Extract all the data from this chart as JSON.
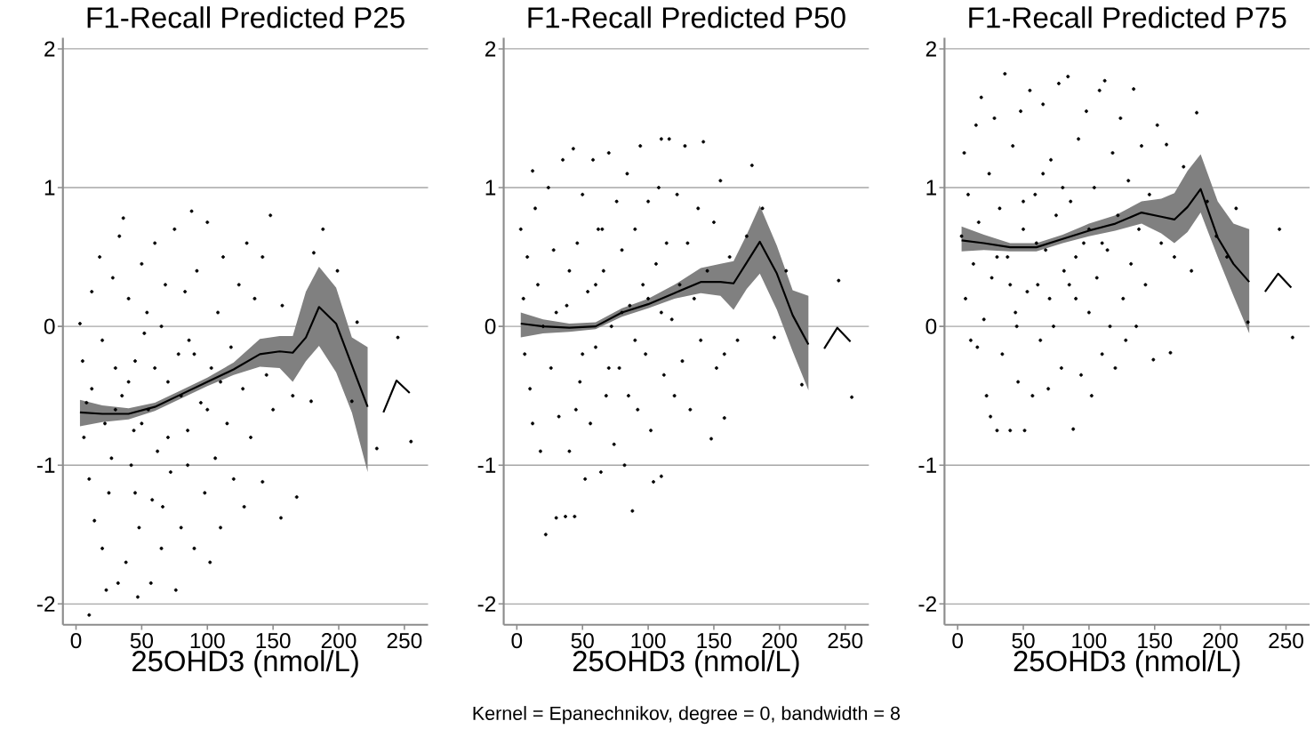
{
  "chart_data": [
    {
      "type": "scatter",
      "title": "F1-Recall Predicted P25",
      "xlabel": "25OHD3 (nmol/L)",
      "xlim": [
        -10,
        268
      ],
      "ylim": [
        -2.15,
        2.08
      ],
      "xticks": [
        0,
        50,
        100,
        150,
        200,
        250
      ],
      "yticks": [
        -2,
        -1,
        0,
        1,
        2
      ],
      "grid": "y",
      "series": [
        {
          "type": "scatter",
          "color": "#000000",
          "marker": "circle",
          "x": [
            3,
            5,
            6,
            8,
            10,
            12,
            12,
            14,
            18,
            20,
            20,
            22,
            10,
            23,
            25,
            27,
            28,
            30,
            32,
            33,
            35,
            36,
            38,
            40,
            42,
            44,
            45,
            47,
            48,
            50,
            52,
            54,
            55,
            57,
            58,
            60,
            62,
            65,
            66,
            68,
            70,
            72,
            75,
            76,
            78,
            80,
            83,
            85,
            86,
            88,
            90,
            92,
            95,
            98,
            100,
            102,
            103,
            106,
            108,
            110,
            112,
            115,
            118,
            120,
            124,
            127,
            128,
            130,
            133,
            136,
            142,
            142,
            145,
            148,
            150,
            156,
            157,
            165,
            168,
            179,
            181,
            188,
            199,
            210,
            214,
            229,
            245,
            255,
            30,
            40,
            50,
            60,
            70,
            80,
            90,
            100,
            45,
            65,
            85,
            110
          ],
          "values": [
            0.02,
            -0.25,
            -0.8,
            -0.55,
            -1.1,
            0.25,
            -0.45,
            -1.4,
            0.5,
            -0.1,
            -1.6,
            -0.7,
            -2.08,
            -1.9,
            -1.2,
            -0.95,
            0.35,
            -0.3,
            -1.85,
            0.65,
            -0.5,
            0.78,
            -1.7,
            0.2,
            -1.0,
            -0.75,
            -0.25,
            -1.95,
            -1.45,
            0.45,
            -0.05,
            0.1,
            -0.6,
            -1.85,
            -1.25,
            0.6,
            -0.9,
            -1.6,
            -1.3,
            0.3,
            -0.4,
            -1.05,
            0.7,
            -1.9,
            -0.2,
            -1.45,
            0.25,
            -0.75,
            -0.1,
            0.83,
            -1.6,
            0.4,
            -0.55,
            -1.2,
            0.75,
            -1.7,
            -0.3,
            -0.95,
            0.1,
            -1.45,
            0.5,
            -0.7,
            -0.15,
            -1.1,
            0.3,
            -0.45,
            -1.3,
            0.6,
            -0.8,
            0.2,
            -1.12,
            0.5,
            -0.35,
            0.8,
            -0.6,
            -1.38,
            0.15,
            -0.5,
            -1.23,
            -0.54,
            0.53,
            0.7,
            0.4,
            -0.54,
            0.03,
            -0.88,
            -0.08,
            -0.83,
            -0.6,
            -0.4,
            -0.7,
            -0.3,
            -0.8,
            -0.5,
            -0.2,
            -0.6,
            -1.2,
            0.0,
            -1.0,
            -0.4
          ]
        },
        {
          "type": "line",
          "color": "#000000",
          "line_style": "solid",
          "x": [
            3,
            20,
            40,
            60,
            80,
            100,
            120,
            140,
            155,
            165,
            175,
            185,
            198,
            210,
            222,
            228,
            234,
            244,
            254
          ],
          "values": [
            -0.62,
            -0.63,
            -0.63,
            -0.58,
            -0.49,
            -0.4,
            -0.31,
            -0.2,
            -0.18,
            -0.19,
            -0.08,
            0.14,
            0.02,
            -0.28,
            -0.58,
            null,
            -0.62,
            -0.39,
            -0.48
          ],
          "lower": [
            -0.72,
            -0.69,
            -0.67,
            -0.61,
            -0.52,
            -0.43,
            -0.35,
            -0.29,
            -0.3,
            -0.4,
            -0.25,
            -0.14,
            -0.33,
            -0.62,
            -1.05,
            null,
            null,
            null,
            null
          ],
          "upper": [
            -0.53,
            -0.57,
            -0.59,
            -0.55,
            -0.46,
            -0.37,
            -0.26,
            -0.09,
            -0.07,
            -0.07,
            0.25,
            0.43,
            0.28,
            -0.08,
            -0.15,
            null,
            null,
            null,
            null
          ]
        }
      ]
    },
    {
      "type": "scatter",
      "title": "F1-Recall Predicted P50",
      "xlabel": "25OHD3 (nmol/L)",
      "xlim": [
        -10,
        268
      ],
      "ylim": [
        -2.15,
        2.08
      ],
      "xticks": [
        0,
        50,
        100,
        150,
        200,
        250
      ],
      "yticks": [
        -2,
        -1,
        0,
        1,
        2
      ],
      "grid": "y",
      "annotations": [
        "Kernel = Epanechnikov, degree = 0, bandwidth = 8"
      ],
      "series": [
        {
          "type": "scatter",
          "color": "#000000",
          "marker": "circle",
          "x": [
            3,
            5,
            6,
            8,
            10,
            12,
            14,
            12,
            16,
            18,
            20,
            22,
            24,
            26,
            28,
            30,
            32,
            35,
            37,
            38,
            40,
            43,
            44,
            46,
            48,
            50,
            52,
            54,
            56,
            58,
            60,
            62,
            64,
            66,
            68,
            70,
            72,
            74,
            76,
            78,
            80,
            82,
            84,
            86,
            88,
            90,
            92,
            94,
            96,
            98,
            100,
            102,
            104,
            106,
            108,
            110,
            110,
            112,
            114,
            116,
            118,
            120,
            122,
            124,
            126,
            128,
            130,
            132,
            135,
            138,
            140,
            142,
            145,
            148,
            150,
            152,
            155,
            158,
            158,
            162,
            168,
            175,
            179,
            187,
            196,
            205,
            217,
            245,
            255,
            30,
            40,
            50,
            60,
            70,
            80,
            90,
            100,
            45,
            65,
            85,
            110
          ],
          "values": [
            0.7,
            0.2,
            -0.2,
            0.5,
            -0.45,
            1.12,
            0.85,
            -0.7,
            0.3,
            -0.9,
            0.0,
            -1.5,
            1.0,
            -0.3,
            0.55,
            -1.38,
            -0.65,
            1.2,
            -1.37,
            0.15,
            -0.9,
            1.28,
            -1.37,
            0.6,
            -0.4,
            0.95,
            -1.1,
            0.25,
            -0.7,
            1.2,
            -0.15,
            0.7,
            -1.05,
            0.4,
            -0.5,
            1.25,
            0.0,
            -0.85,
            0.9,
            -0.3,
            0.55,
            -1.0,
            1.1,
            0.15,
            -1.33,
            0.7,
            -0.6,
            1.3,
            0.3,
            -0.2,
            0.9,
            -0.75,
            -1.12,
            0.45,
            1.0,
            1.35,
            -1.08,
            -0.35,
            0.6,
            1.35,
            0.05,
            -0.5,
            0.95,
            0.3,
            -0.25,
            1.3,
            0.6,
            -0.6,
            0.2,
            0.85,
            -0.1,
            1.33,
            0.4,
            -0.81,
            0.75,
            -0.3,
            1.05,
            -0.66,
            -0.2,
            0.5,
            -0.1,
            0.65,
            1.16,
            0.85,
            -0.08,
            0.4,
            -0.42,
            0.33,
            -0.51,
            0.1,
            0.4,
            -0.2,
            0.3,
            -0.3,
            0.1,
            -0.1,
            0.2,
            -0.6,
            0.7,
            -0.5,
            0.1
          ]
        },
        {
          "type": "line",
          "color": "#000000",
          "line_style": "solid",
          "x": [
            3,
            20,
            40,
            60,
            80,
            100,
            120,
            140,
            155,
            165,
            175,
            185,
            198,
            210,
            222,
            228,
            234,
            244,
            254
          ],
          "values": [
            0.02,
            0.0,
            -0.01,
            0.0,
            0.1,
            0.16,
            0.24,
            0.32,
            0.32,
            0.31,
            0.46,
            0.61,
            0.38,
            0.08,
            -0.13,
            null,
            -0.16,
            -0.01,
            -0.11
          ],
          "lower": [
            -0.08,
            -0.05,
            -0.04,
            -0.02,
            0.07,
            0.13,
            0.2,
            0.24,
            0.22,
            0.12,
            0.27,
            0.38,
            0.12,
            -0.18,
            -0.46,
            null,
            null,
            null,
            null
          ],
          "upper": [
            0.1,
            0.05,
            0.02,
            0.03,
            0.13,
            0.2,
            0.3,
            0.42,
            0.45,
            0.47,
            0.66,
            0.87,
            0.58,
            0.26,
            0.22,
            null,
            null,
            null,
            null
          ]
        }
      ]
    },
    {
      "type": "scatter",
      "title": "F1-Recall Predicted P75",
      "xlabel": "25OHD3 (nmol/L)",
      "xlim": [
        -10,
        268
      ],
      "ylim": [
        -2.15,
        2.08
      ],
      "xticks": [
        0,
        50,
        100,
        150,
        200,
        250
      ],
      "yticks": [
        -2,
        -1,
        0,
        1,
        2
      ],
      "grid": "y",
      "series": [
        {
          "type": "scatter",
          "color": "#000000",
          "marker": "circle",
          "x": [
            3,
            5,
            6,
            8,
            10,
            12,
            14,
            15,
            16,
            18,
            20,
            22,
            24,
            25,
            26,
            28,
            30,
            32,
            34,
            36,
            38,
            40,
            42,
            44,
            46,
            48,
            50,
            51,
            53,
            55,
            57,
            59,
            61,
            63,
            65,
            67,
            69,
            71,
            73,
            75,
            77,
            79,
            81,
            84,
            86,
            88,
            90,
            92,
            94,
            96,
            98,
            100,
            102,
            104,
            106,
            108,
            110,
            112,
            114,
            116,
            118,
            120,
            122,
            124,
            126,
            128,
            130,
            132,
            134,
            136,
            138,
            140,
            143,
            146,
            149,
            152,
            155,
            159,
            162,
            165,
            172,
            178,
            182,
            190,
            197,
            205,
            212,
            221,
            245,
            255,
            30,
            40,
            50,
            60,
            70,
            80,
            90,
            100,
            45,
            65,
            85,
            110
          ],
          "values": [
            0.65,
            1.25,
            0.2,
            0.95,
            -0.1,
            0.45,
            1.45,
            -0.15,
            0.75,
            1.65,
            0.05,
            -0.5,
            1.1,
            -0.65,
            0.35,
            1.5,
            -0.75,
            0.85,
            -0.2,
            1.82,
            0.5,
            -0.75,
            1.3,
            0.1,
            -0.4,
            1.55,
            0.7,
            -0.75,
            0.25,
            1.7,
            -0.5,
            0.95,
            0.3,
            -0.1,
            1.6,
            0.55,
            -0.45,
            1.2,
            0.0,
            0.8,
            1.75,
            -0.3,
            0.4,
            1.8,
            0.9,
            -0.74,
            0.2,
            1.35,
            -0.35,
            0.6,
            1.55,
            0.1,
            -0.5,
            1.0,
            0.35,
            1.7,
            -0.2,
            1.77,
            0.55,
            0.0,
            1.25,
            -0.3,
            0.8,
            1.5,
            0.2,
            -0.1,
            1.05,
            0.45,
            1.71,
            0.0,
            0.7,
            1.3,
            0.3,
            0.95,
            -0.24,
            1.45,
            0.6,
            1.31,
            -0.19,
            0.5,
            1.15,
            0.4,
            1.54,
            0.9,
            0.65,
            0.5,
            0.85,
            0.03,
            0.7,
            -0.08,
            0.5,
            0.3,
            0.9,
            0.6,
            0.2,
            1.0,
            0.5,
            0.7,
            0.0,
            1.1,
            0.3,
            0.6
          ]
        },
        {
          "type": "line",
          "color": "#000000",
          "line_style": "solid",
          "x": [
            3,
            20,
            40,
            60,
            80,
            100,
            120,
            140,
            155,
            165,
            175,
            185,
            198,
            210,
            222,
            228,
            234,
            244,
            254
          ],
          "values": [
            0.62,
            0.6,
            0.57,
            0.57,
            0.63,
            0.69,
            0.74,
            0.82,
            0.79,
            0.77,
            0.86,
            0.99,
            0.64,
            0.45,
            0.32,
            null,
            0.25,
            0.38,
            0.28
          ],
          "lower": [
            0.54,
            0.55,
            0.54,
            0.54,
            0.6,
            0.65,
            0.69,
            0.74,
            0.67,
            0.6,
            0.68,
            0.82,
            0.5,
            0.22,
            -0.05,
            null,
            null,
            null,
            null
          ],
          "upper": [
            0.72,
            0.66,
            0.6,
            0.6,
            0.66,
            0.74,
            0.8,
            0.9,
            0.92,
            0.96,
            1.12,
            1.24,
            0.9,
            0.74,
            0.7,
            null,
            null,
            null,
            null
          ]
        }
      ]
    }
  ]
}
